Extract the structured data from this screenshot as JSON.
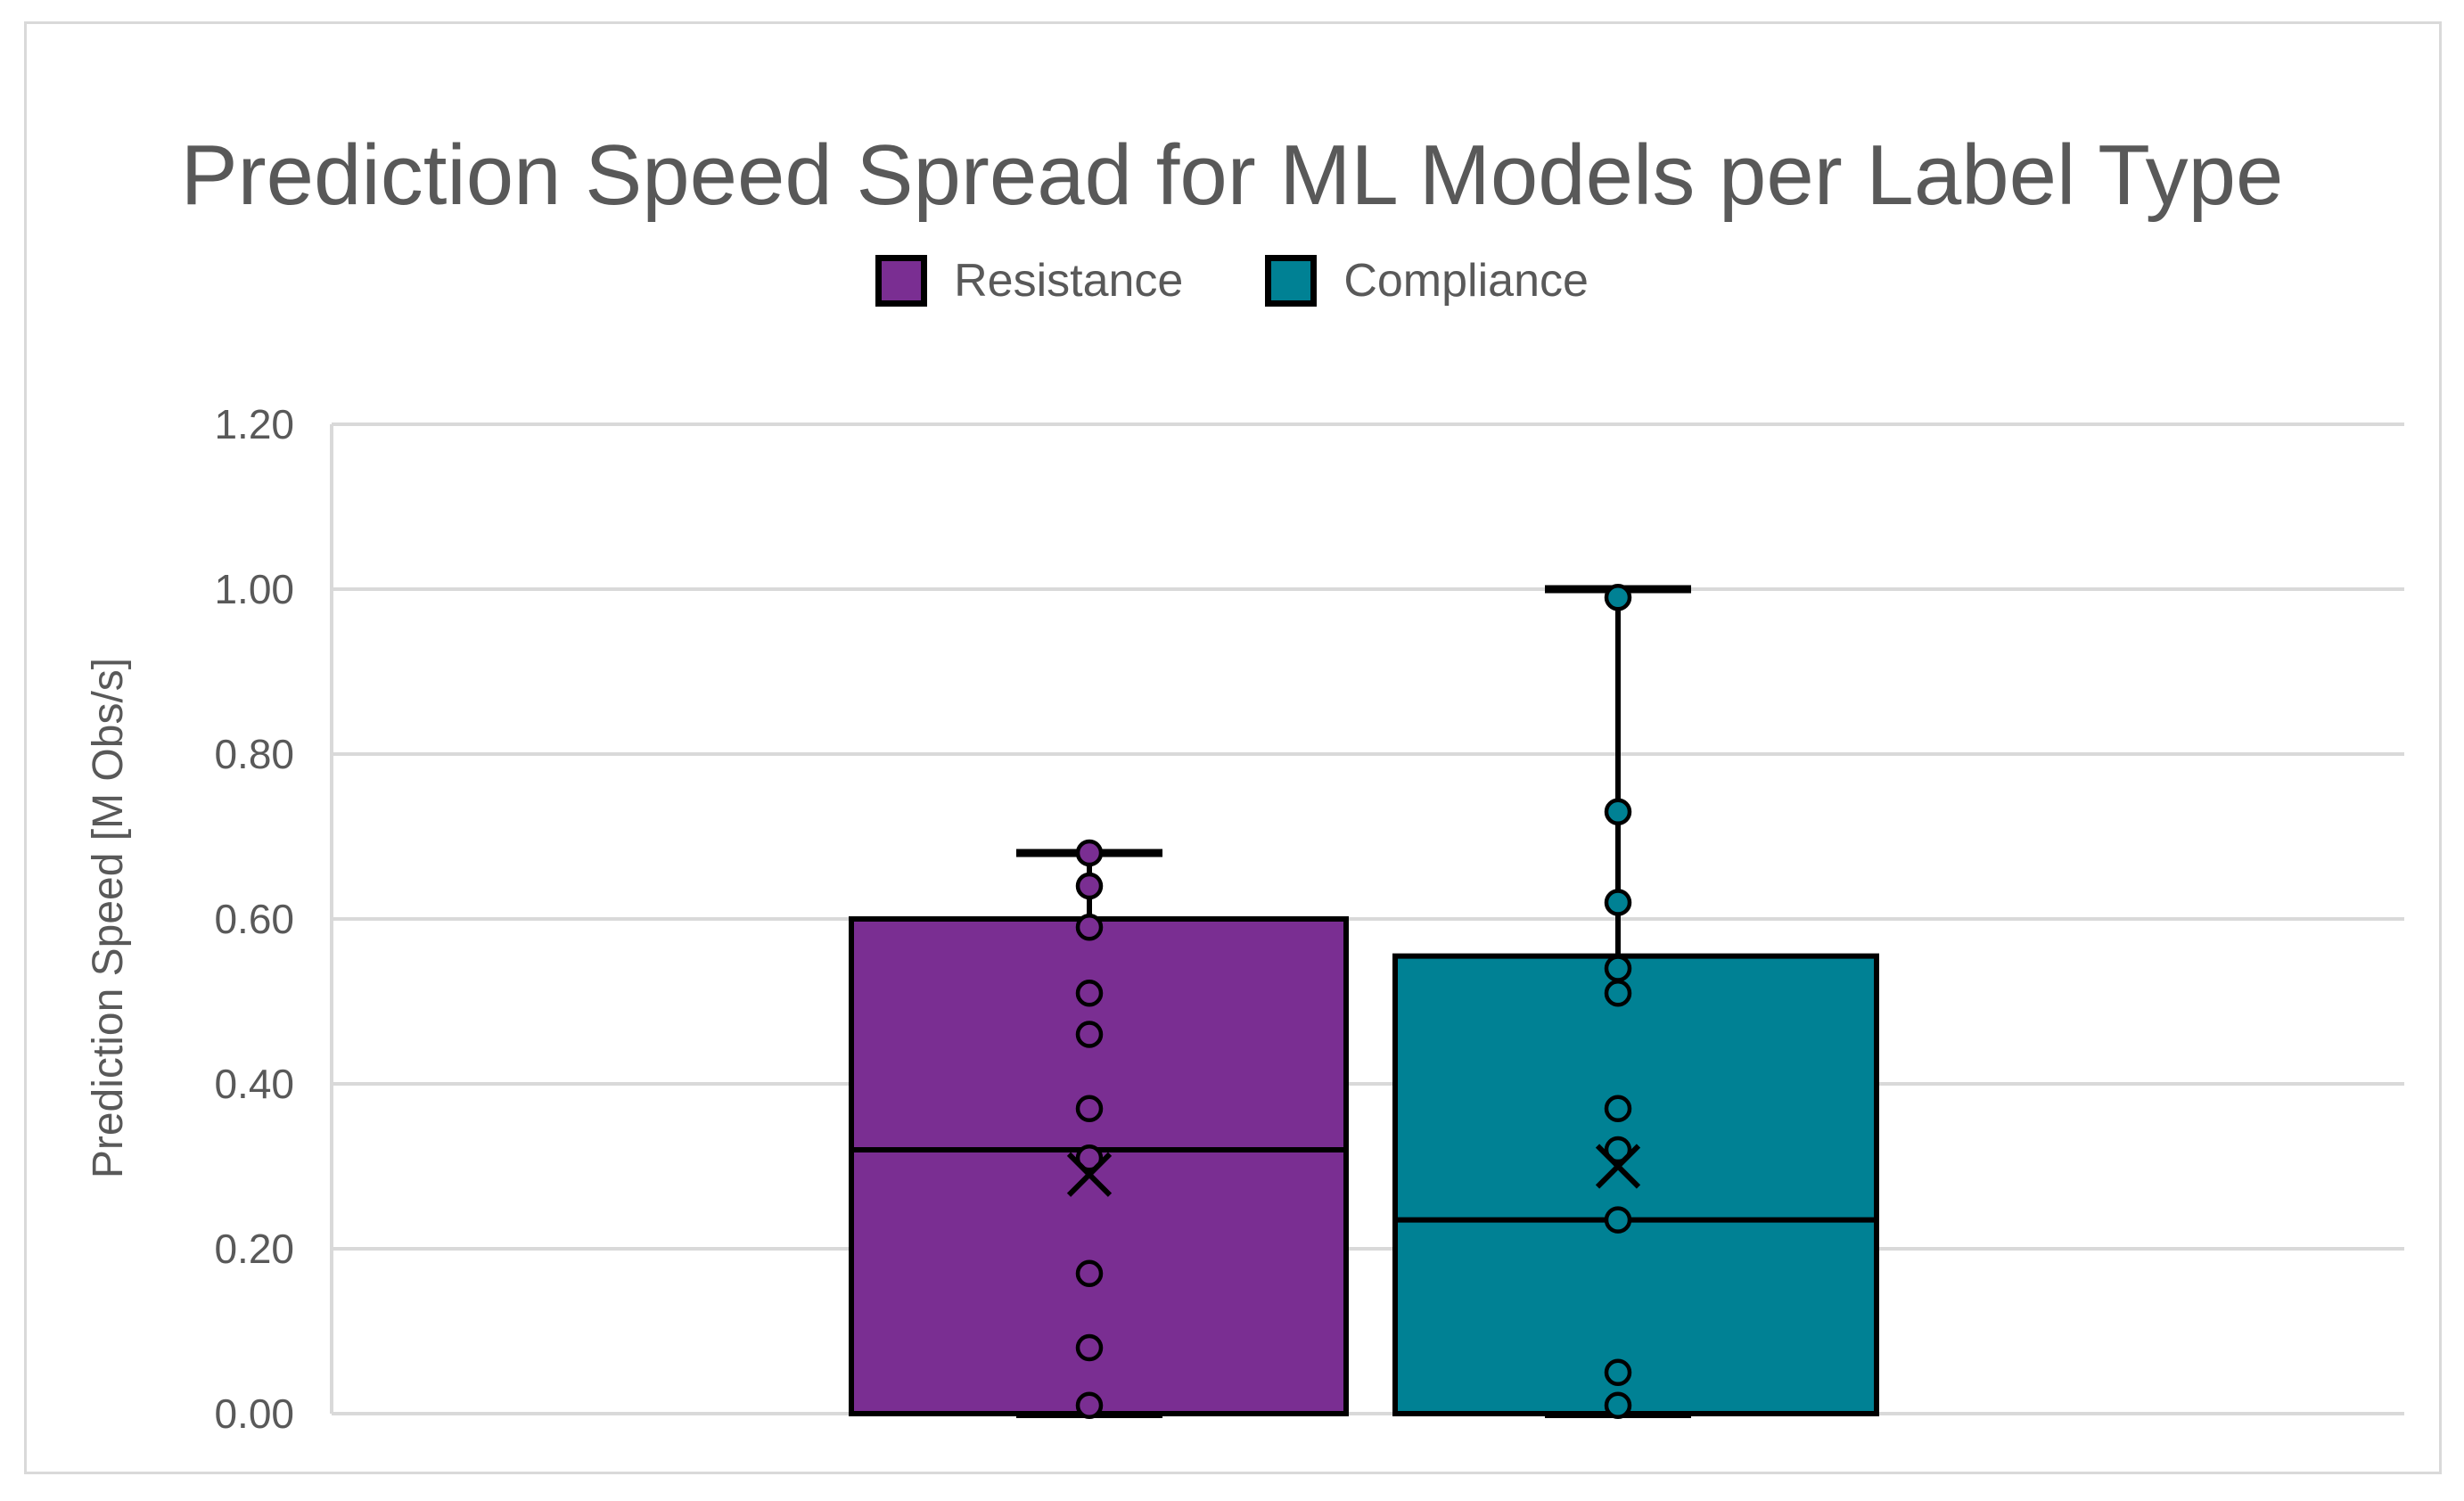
{
  "title": "Prediction Speed Spread for ML Models per Label Type",
  "legend": {
    "items": [
      {
        "label": "Resistance",
        "color": "#7A2E92"
      },
      {
        "label": "Compliance",
        "color": "#008194"
      }
    ]
  },
  "y_axis": {
    "title": "Prediction Speed [M Obs/s]",
    "ticks": [
      "0.00",
      "0.20",
      "0.40",
      "0.60",
      "0.80",
      "1.00",
      "1.20"
    ]
  },
  "colors": {
    "text": "#595959",
    "gridline": "#d9d9d9",
    "box_outline": "#000000"
  },
  "chart_data": {
    "type": "box",
    "title": "Prediction Speed Spread for ML Models per Label Type",
    "xlabel": "",
    "ylabel": "Prediction Speed [M Obs/s]",
    "ylim": [
      0,
      1.2
    ],
    "ytick_step": 0.2,
    "grid": true,
    "legend_position": "top",
    "series": [
      {
        "name": "Resistance",
        "color": "#7A2E92",
        "whisker_low": 0.0,
        "q1": 0.0,
        "median": 0.32,
        "q3": 0.6,
        "whisker_high": 0.68,
        "mean": 0.29,
        "points": [
          0.68,
          0.64,
          0.59,
          0.51,
          0.46,
          0.37,
          0.31,
          0.17,
          0.08,
          0.01
        ]
      },
      {
        "name": "Compliance",
        "color": "#008194",
        "whisker_low": 0.0,
        "q1": 0.0,
        "median": 0.235,
        "q3": 0.555,
        "whisker_high": 1.0,
        "mean": 0.3,
        "points": [
          0.99,
          0.73,
          0.62,
          0.54,
          0.51,
          0.37,
          0.32,
          0.235,
          0.05,
          0.01
        ]
      }
    ]
  }
}
